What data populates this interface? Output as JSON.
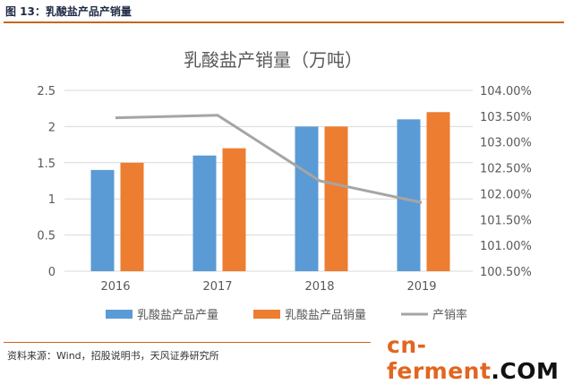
{
  "caption": "图 13：乳酸盐产品产销量",
  "source": "资料来源：Wind，招股说明书，天风证券研究所",
  "watermark": {
    "main": "cn-ferment",
    "dot": ".",
    "tail": "COM"
  },
  "colors": {
    "production": "#5b9bd5",
    "sales": "#ed7d31",
    "rate": "#a5a5a5",
    "accent": "#c8661f"
  },
  "chart_data": {
    "type": "bar",
    "title": "乳酸盐产销量（万吨）",
    "categories": [
      "2016",
      "2017",
      "2018",
      "2019"
    ],
    "series": [
      {
        "name": "乳酸盐产品产量",
        "kind": "bar",
        "axis": "left",
        "values": [
          1.4,
          1.6,
          2.0,
          2.1
        ]
      },
      {
        "name": "乳酸盐产品销量",
        "kind": "bar",
        "axis": "left",
        "values": [
          1.5,
          1.7,
          2.0,
          2.2
        ]
      },
      {
        "name": "产销率",
        "kind": "line",
        "axis": "right",
        "values": [
          103.47,
          103.52,
          102.25,
          101.83
        ]
      }
    ],
    "y_left": {
      "min": 0,
      "max": 2.5,
      "ticks": [
        "0",
        "0.5",
        "1",
        "1.5",
        "2",
        "2.5"
      ]
    },
    "y_right": {
      "min": 100.5,
      "max": 104.0,
      "ticks": [
        "100.50%",
        "101.00%",
        "101.50%",
        "102.00%",
        "102.50%",
        "103.00%",
        "103.50%",
        "104.00%"
      ]
    },
    "grid": "horizontal",
    "legend_position": "bottom"
  }
}
